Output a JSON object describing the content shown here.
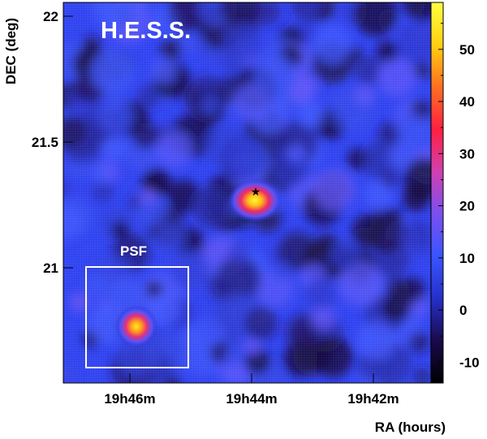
{
  "chart_data": {
    "type": "heatmap",
    "title": "H.E.S.S.",
    "xlabel": "RA (hours)",
    "ylabel": "DEC (deg)",
    "x_ticks": [
      "19h46m",
      "19h44m",
      "19h42m"
    ],
    "y_ticks": [
      "22",
      "21.5",
      "21"
    ],
    "y_tick_values": [
      22,
      21.5,
      21
    ],
    "ylim": [
      20.6,
      22.08
    ],
    "colorbar": {
      "ticks": [
        50,
        40,
        30,
        20,
        10,
        0,
        -10
      ],
      "range": [
        -14,
        59
      ]
    },
    "source": {
      "ra": "19h43m50s",
      "dec": 21.31,
      "peak_value": 58,
      "marker": "star"
    },
    "psf_inset": {
      "label": "PSF",
      "center_dec": 20.82,
      "peak_value": 55
    },
    "background_level": 3,
    "grid": true
  },
  "colors": {
    "colorscale": [
      "#000000",
      "#1a0a4a",
      "#2630c8",
      "#3a55ff",
      "#7a50f0",
      "#d040b0",
      "#ff2040",
      "#ff7020",
      "#ffd010",
      "#ffff40"
    ],
    "inset_box": "#ffffff",
    "text": "#000000"
  },
  "icons": {
    "source_marker": "star-icon"
  }
}
